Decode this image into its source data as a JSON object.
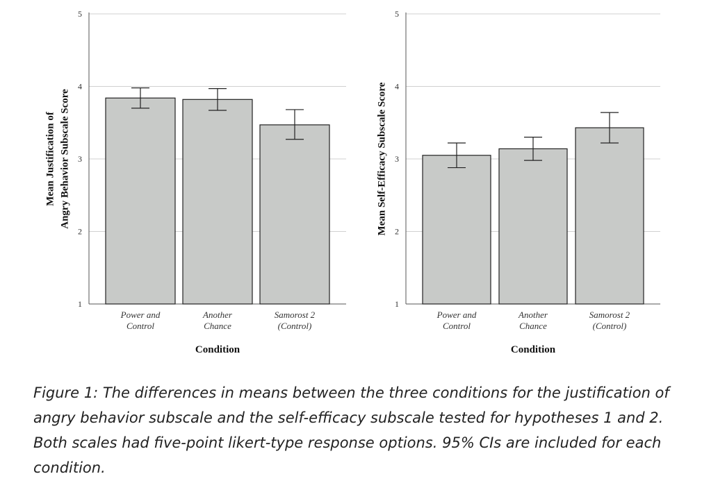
{
  "chart_data": [
    {
      "type": "bar",
      "categories": [
        [
          "Power and",
          "Control"
        ],
        [
          "Another",
          "Chance"
        ],
        [
          "Samorost 2",
          "(Control)"
        ]
      ],
      "values": [
        3.84,
        3.82,
        3.47
      ],
      "ci_lower": [
        3.7,
        3.67,
        3.27
      ],
      "ci_upper": [
        3.98,
        3.97,
        3.68
      ],
      "xlabel": "Condition",
      "ylabel": [
        "Mean Justification of",
        "Angry Behavior Subscale Score"
      ],
      "ylim": [
        1,
        5
      ],
      "yticks": [
        1,
        2,
        3,
        4,
        5
      ],
      "grid": true,
      "bar_color": "#c8cac8"
    },
    {
      "type": "bar",
      "categories": [
        [
          "Power and",
          "Control"
        ],
        [
          "Another",
          "Chance"
        ],
        [
          "Samorost 2",
          "(Control)"
        ]
      ],
      "values": [
        3.05,
        3.14,
        3.43
      ],
      "ci_lower": [
        2.88,
        2.98,
        3.22
      ],
      "ci_upper": [
        3.22,
        3.3,
        3.64
      ],
      "xlabel": "Condition",
      "ylabel": [
        "Mean Self-Efficacy Subscale Score"
      ],
      "ylim": [
        1,
        5
      ],
      "yticks": [
        1,
        2,
        3,
        4,
        5
      ],
      "grid": true,
      "bar_color": "#c8cac8"
    }
  ],
  "caption": "Figure 1: The differences in means between the three conditions for the justification of angry behavior subscale and the self-efficacy subscale tested for hypotheses 1 and 2. Both scales had five-point likert-type response options. 95% CIs are included for each condition."
}
